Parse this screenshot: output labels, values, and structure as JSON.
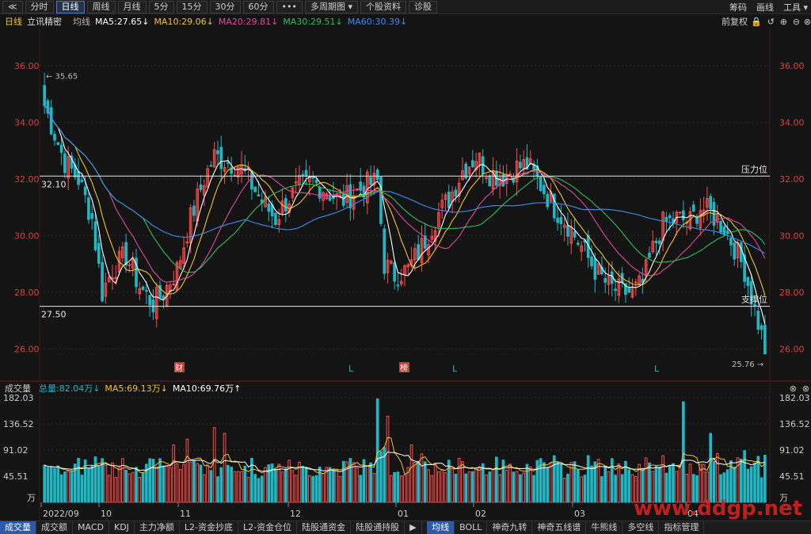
{
  "toolbar": {
    "back": "≪",
    "tabs": [
      "分时",
      "日线",
      "周线",
      "月线",
      "5分",
      "15分",
      "30分",
      "60分",
      "•••",
      "多周期图 ▾",
      "个股资料",
      "诊股"
    ],
    "active_index": 1,
    "right": [
      "筹码",
      "画线",
      "工具 ▾"
    ]
  },
  "ma_bar": {
    "period": "日线",
    "stock": "立讯精密",
    "ma_label": "均线",
    "ma5": "MA5:27.65↓",
    "ma10": "MA10:29.06↓",
    "ma20": "MA20:29.81↓",
    "ma30": "MA30:29.51↓",
    "ma60": "MA60:30.39↓",
    "adjust": "前复权"
  },
  "price_axis": {
    "min": 25.0,
    "max": 37.2,
    "ticks": [
      "26.00",
      "28.00",
      "30.00",
      "32.00",
      "34.00",
      "36.00"
    ]
  },
  "annotations": {
    "high_label": "35.65",
    "low_label": "25.76",
    "resistance_value": 32.1,
    "resistance_text": "32.10",
    "resistance_label": "压力位",
    "support_value": 27.5,
    "support_text": "27.50",
    "support_label": "支撑位",
    "event_cai": "财",
    "event_bang": "榜",
    "event_l": "L"
  },
  "volume_bar": {
    "title": "成交量",
    "total": "总量:82.04万↓",
    "ma5": "MA5:69.13万↓",
    "ma10": "MA10:69.76万↑"
  },
  "volume_axis": {
    "max": 182.03,
    "ticks": [
      "182.03",
      "136.52",
      "91.02",
      "45.51"
    ],
    "unit": "万"
  },
  "date_axis": [
    "2022/09",
    "10",
    "11",
    "12",
    "01",
    "02",
    "03",
    "04"
  ],
  "bottom_tabs_left": [
    "成交量",
    "成交额",
    "MACD",
    "KDJ",
    "主力净额",
    "L2-资金抄底",
    "L2-资金仓位",
    "陆股通资金",
    "陆股通持股"
  ],
  "bottom_tabs_right": [
    "均线",
    "BOLL",
    "神奇九转",
    "神奇五线谱",
    "牛熊线",
    "多空线",
    "指标管理"
  ],
  "colors": {
    "up": "#ff4d4d",
    "down": "#1fb8c4",
    "ma5": "#ffffff",
    "ma10": "#f2c230",
    "ma20": "#e04aa0",
    "ma30": "#2fbf5a",
    "ma60": "#3c8ef0",
    "axis": "#d94040"
  },
  "watermark": "www.ddgp.net"
}
